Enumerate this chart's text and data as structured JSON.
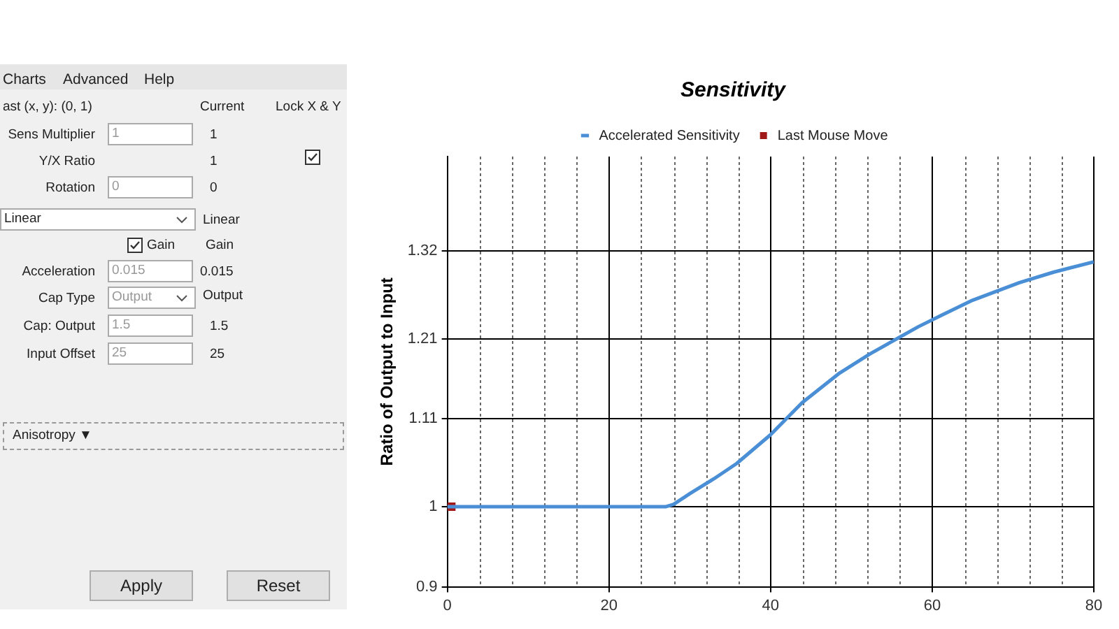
{
  "chart_data": [
    {
      "type": "other",
      "annotations": [
        "Charts",
        "Advanced",
        "Help",
        "ast (x, y): (0, 1)",
        "Current",
        "Lock X & Y",
        "Sens Multiplier",
        "1",
        "1",
        "Y/X Ratio",
        "1",
        "Rotation",
        "0",
        "0",
        "Linear",
        "Linear",
        "Gain",
        "Gain",
        "Acceleration",
        "0.015",
        "0.015",
        "Cap Type",
        "Output",
        "Output",
        "Cap: Output",
        "1.5",
        "1.5",
        "Input Offset",
        "25",
        "25",
        "Anisotropy ▼",
        "Apply",
        "Reset"
      ]
    },
    {
      "type": "line",
      "title": "Sensitivity",
      "ylabel": "Ratio of Output to Input",
      "xlim": [
        0,
        80
      ],
      "xticks": [
        0,
        {
          "value": 4,
          "label": null
        },
        {
          "value": 8,
          "label": null
        },
        {
          "value": 12,
          "label": null
        },
        {
          "value": 16,
          "label": null
        },
        20,
        {
          "value": 24,
          "label": null
        },
        {
          "value": 28,
          "label": null
        },
        {
          "value": 32,
          "label": null
        },
        {
          "value": 36,
          "label": null
        },
        40,
        {
          "value": 44,
          "label": null
        },
        {
          "value": 48,
          "label": null
        },
        {
          "value": 52,
          "label": null
        },
        {
          "value": 56,
          "label": null
        },
        60,
        {
          "value": 64,
          "label": null
        },
        {
          "value": 68,
          "label": null
        },
        {
          "value": 72,
          "label": null
        },
        {
          "value": 76,
          "label": null
        },
        80
      ],
      "ylim": [
        0.9,
        1.4375
      ],
      "yticks": [
        0.9,
        1,
        1.11,
        1.21,
        1.32
      ],
      "grid": true,
      "legend": "top",
      "series": [
        {
          "name": "Accelerated Sensitivity",
          "type": "line",
          "marker": "none",
          "color": "#4a8fd6",
          "x": [
            0,
            10,
            20,
            27,
            28,
            30.1,
            33,
            35.8,
            40,
            43.9,
            48.4,
            52.3,
            58.3,
            61.3,
            65,
            70.8,
            75,
            80
          ],
          "values": [
            1.0,
            1.0,
            1.0,
            1.0,
            1.003,
            1.017,
            1.035,
            1.054,
            1.09,
            1.13,
            1.166,
            1.191,
            1.225,
            1.24,
            1.258,
            1.28,
            1.293,
            1.306
          ]
        },
        {
          "name": "Last Mouse Move",
          "type": "scatter",
          "marker": "square",
          "color": "#a01818",
          "x": [
            0.5
          ],
          "values": [
            1.0
          ]
        }
      ]
    }
  ]
}
